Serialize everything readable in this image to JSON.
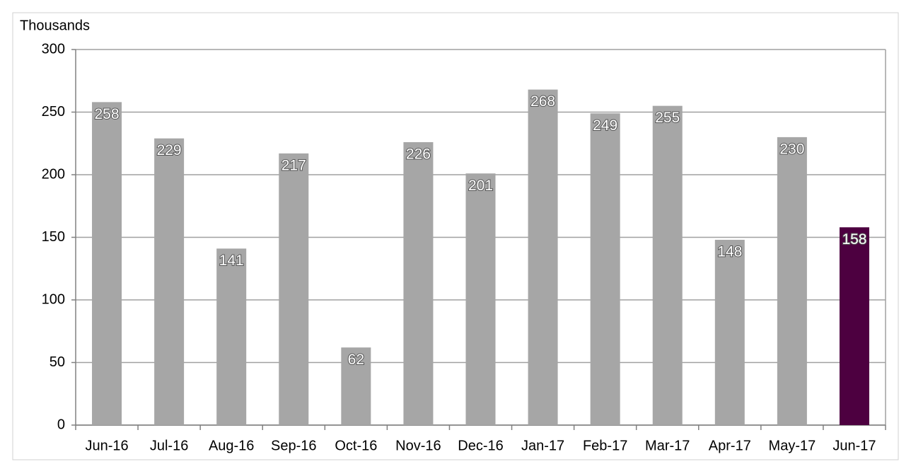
{
  "chart_data": {
    "type": "bar",
    "y_axis_label": "Thousands",
    "categories": [
      "Jun-16",
      "Jul-16",
      "Aug-16",
      "Sep-16",
      "Oct-16",
      "Nov-16",
      "Dec-16",
      "Jan-17",
      "Feb-17",
      "Mar-17",
      "Apr-17",
      "May-17",
      "Jun-17"
    ],
    "values": [
      258,
      229,
      141,
      217,
      62,
      226,
      201,
      268,
      249,
      255,
      148,
      230,
      158
    ],
    "colors": [
      "#a6a6a6",
      "#a6a6a6",
      "#a6a6a6",
      "#a6a6a6",
      "#a6a6a6",
      "#a6a6a6",
      "#a6a6a6",
      "#a6a6a6",
      "#a6a6a6",
      "#a6a6a6",
      "#a6a6a6",
      "#a6a6a6",
      "#4d0040"
    ],
    "ylim": [
      0,
      300
    ],
    "yticks": [
      0,
      50,
      100,
      150,
      200,
      250,
      300
    ],
    "grid": true
  }
}
